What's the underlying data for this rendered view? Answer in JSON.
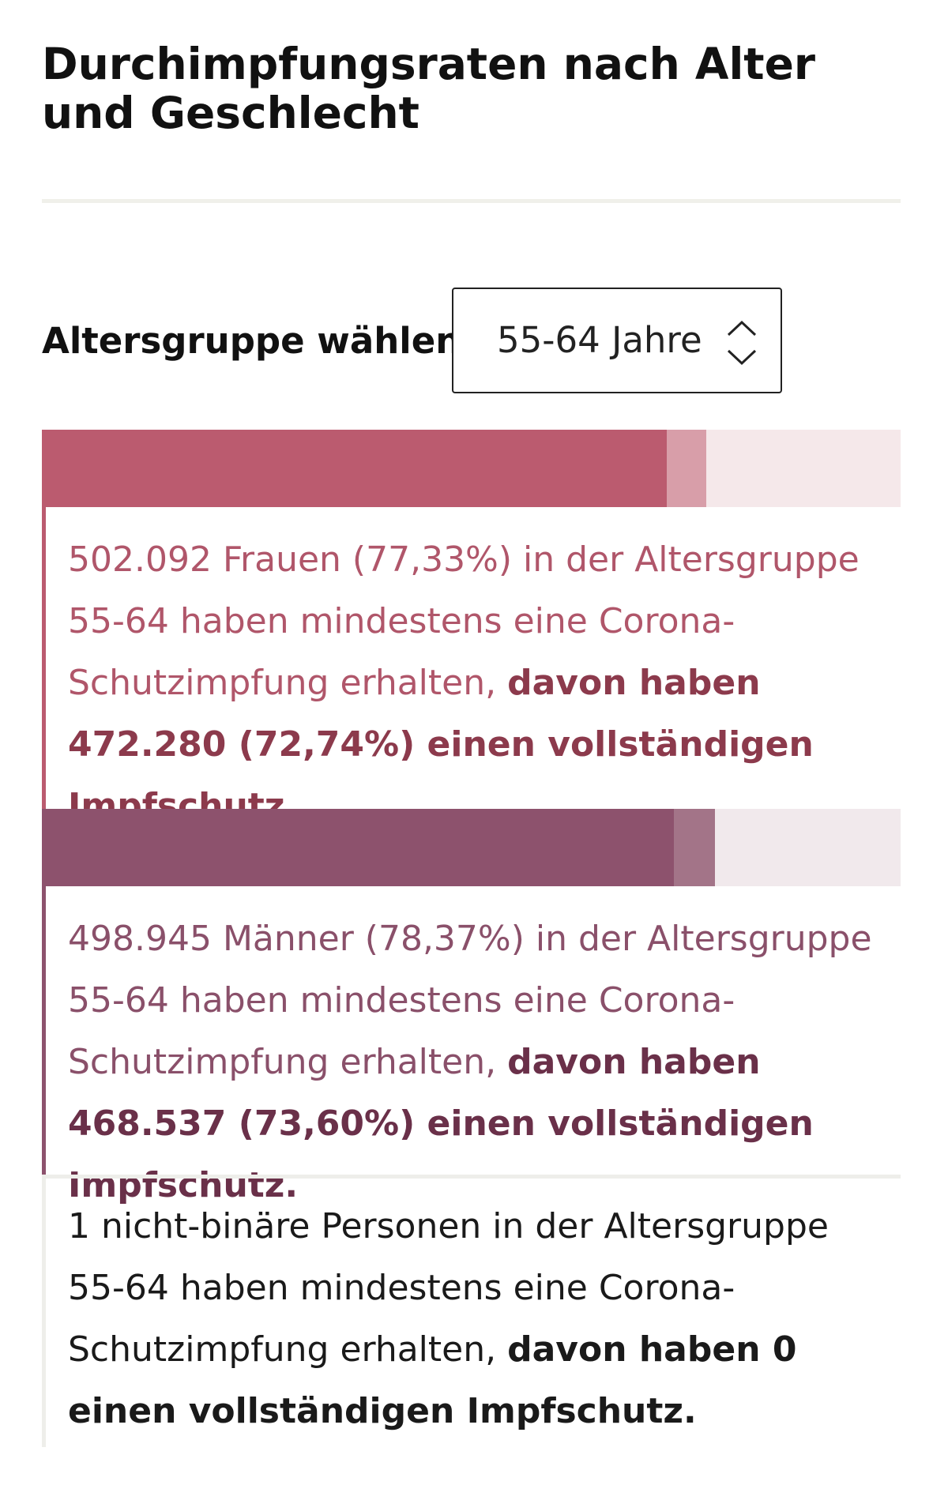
{
  "title": "Durchimpfungsraten nach Alter und Geschlecht",
  "selector": {
    "label": "Altersgruppe wählen:",
    "value": "55-64 Jahre"
  },
  "colors": {
    "women_full": "#bb5b6f",
    "women_partial": "#d89ea9",
    "women_track": "#f5e8ea",
    "women_text": "#b0566a",
    "women_text_bold": "#8c3a4c",
    "men_full": "#8d526d",
    "men_partial": "#a37488",
    "men_track": "#f1e9ec",
    "men_text": "#8a506a",
    "men_text_bold": "#6a3049"
  },
  "women": {
    "at_least_one_percent": 77.33,
    "full_percent": 72.74,
    "text_normal": "502.092 Frauen (77,33%) in der Altersgruppe 55-64 haben mindestens eine Corona-Schutzimpfung erhalten, ",
    "text_bold": "davon haben 472.280 (72,74%) einen vollständigen Impfschutz."
  },
  "men": {
    "at_least_one_percent": 78.37,
    "full_percent": 73.6,
    "text_normal": "498.945 Männer (78,37%) in der Altersgruppe 55-64 haben mindestens eine Corona-Schutzimpfung erhalten, ",
    "text_bold": "davon haben 468.537 (73,60%) einen vollständigen Impfschutz."
  },
  "nonbinary": {
    "text_normal": "1 nicht-binäre Personen in der Altersgruppe 55-64 haben mindestens eine Corona-Schutzimpfung erhalten, ",
    "text_bold": "davon haben 0 einen vollständigen Impfschutz."
  }
}
